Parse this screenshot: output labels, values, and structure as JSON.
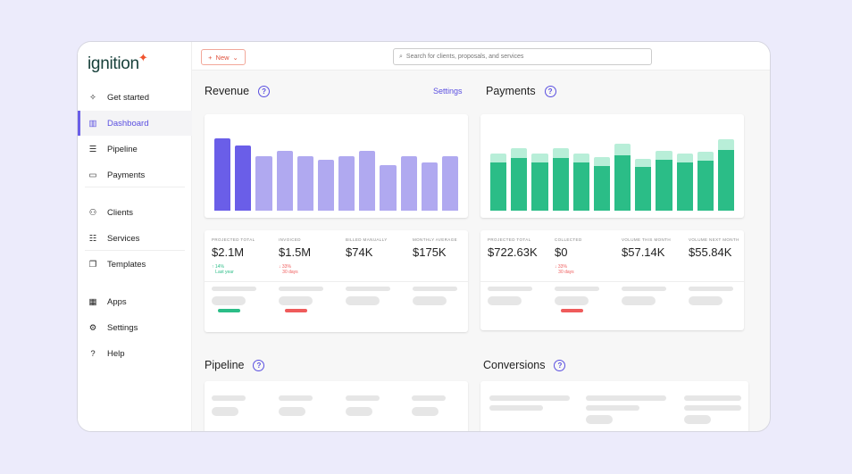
{
  "logo": "ignition",
  "nav": [
    {
      "label": "Get started",
      "icon": "sparkle-icon"
    },
    {
      "label": "Dashboard",
      "icon": "chart-icon"
    },
    {
      "label": "Pipeline",
      "icon": "pipeline-icon"
    },
    {
      "label": "Payments",
      "icon": "card-icon"
    },
    {
      "label": "Clients",
      "icon": "users-icon"
    },
    {
      "label": "Services",
      "icon": "list-icon"
    },
    {
      "label": "Templates",
      "icon": "copy-icon"
    },
    {
      "label": "Apps",
      "icon": "grid-icon"
    },
    {
      "label": "Settings",
      "icon": "gear-icon"
    },
    {
      "label": "Help",
      "icon": "help-icon"
    }
  ],
  "topbar": {
    "new_label": "New",
    "search_placeholder": "Search for clients, proposals, and services"
  },
  "revenue": {
    "title": "Revenue",
    "settings": "Settings",
    "stats": [
      {
        "label": "Projected total",
        "value": "$2.1M",
        "change": "14%",
        "period": "Last year",
        "dir": "up"
      },
      {
        "label": "Invoiced",
        "value": "$1.5M",
        "change": "33%",
        "period": "30 days",
        "dir": "down"
      },
      {
        "label": "Billed manually",
        "value": "$74K"
      },
      {
        "label": "Monthly average",
        "value": "$175K"
      }
    ]
  },
  "payments": {
    "title": "Payments",
    "stats": [
      {
        "label": "Projected total",
        "value": "$722.63K"
      },
      {
        "label": "Collected",
        "value": "$0",
        "change": "33%",
        "period": "30 days",
        "dir": "down"
      },
      {
        "label": "Volume this month",
        "value": "$57.14K"
      },
      {
        "label": "Volume next month",
        "value": "$55.84K"
      }
    ]
  },
  "pipeline": {
    "title": "Pipeline"
  },
  "conversions": {
    "title": "Conversions"
  },
  "colors": {
    "accent": "#5a4fe0",
    "revenue_dark": "#6a5ee8",
    "revenue_light": "#b0a9f0",
    "pay_dark": "#2bbd87",
    "pay_light": "#b8eed8",
    "up": "#2bbd87",
    "down": "#ef5b5b"
  },
  "chart_data": [
    {
      "type": "bar",
      "title": "Revenue",
      "values": [
        81,
        73,
        61,
        67,
        61,
        57,
        61,
        67,
        51,
        61,
        54,
        61
      ],
      "highlighted": [
        0,
        1
      ]
    },
    {
      "type": "bar",
      "title": "Payments",
      "series": [
        {
          "name": "actual",
          "values": [
            54,
            59,
            54,
            59,
            54,
            50,
            62,
            49,
            57,
            54,
            56,
            68
          ]
        },
        {
          "name": "projected",
          "values": [
            64,
            70,
            64,
            70,
            64,
            60,
            75,
            58,
            67,
            64,
            66,
            80
          ]
        }
      ]
    }
  ]
}
